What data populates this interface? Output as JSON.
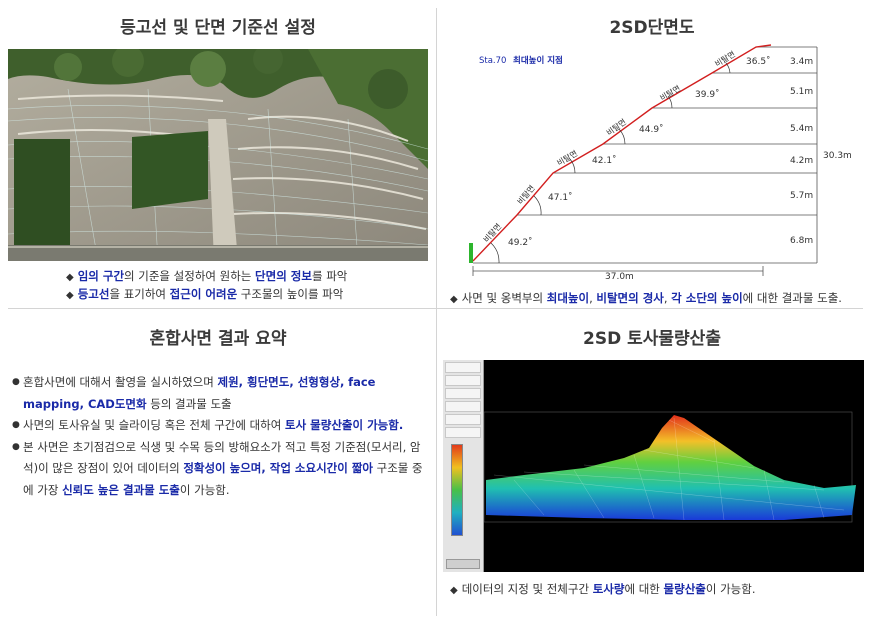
{
  "top_left": {
    "title": "등고선 및 단면 기준선 설정",
    "caption_line1": [
      {
        "text": "임의 구간",
        "hl": true
      },
      {
        "text": "의 기준을 설정하여 원하는 ",
        "hl": false
      },
      {
        "text": "단면의 정보",
        "hl": true
      },
      {
        "text": "를 파악",
        "hl": false
      }
    ],
    "caption_line2": [
      {
        "text": "등고선",
        "hl": true
      },
      {
        "text": "을 표기하여 ",
        "hl": false
      },
      {
        "text": "접근이 어려운",
        "hl": true
      },
      {
        "text": " 구조물의 높이를 파악",
        "hl": false
      }
    ]
  },
  "top_right": {
    "title": "2SD단면도",
    "station": "Sta.70",
    "station_note": "최대높이 지점",
    "slope_labels": [
      "비탈면",
      "비탈면",
      "비탈면",
      "비탈면",
      "비탈면",
      "비탈면",
      "비탈면"
    ],
    "angles": [
      "49.2˚",
      "47.1˚",
      "42.1˚",
      "44.9˚",
      "39.9˚",
      "36.5˚"
    ],
    "heights": [
      "3.4m",
      "5.1m",
      "5.4m",
      "4.2m",
      "5.7m",
      "6.8m"
    ],
    "total_height": "30.3m",
    "width": "37.0m",
    "caption": [
      {
        "text": "사면 및 옹벽부의 ",
        "hl": false
      },
      {
        "text": "최대높이",
        "hl": true
      },
      {
        "text": ", ",
        "hl": false
      },
      {
        "text": "비탈면의 경사",
        "hl": true
      },
      {
        "text": ", ",
        "hl": false
      },
      {
        "text": "각 소단의 높이",
        "hl": true
      },
      {
        "text": "에 대한 결과물 도출.",
        "hl": false
      }
    ]
  },
  "bottom_left": {
    "title": "혼합사면 결과 요약",
    "bullets": [
      [
        {
          "text": "혼합사면에 대해서 촬영을 실시하였으며 ",
          "hl": false
        },
        {
          "text": "제원, 횡단면도, 선형형상,",
          "hl": true
        },
        {
          "text": " ",
          "hl": false
        },
        {
          "text": "face mapping, CAD도면화",
          "hl": true
        },
        {
          "text": " 등의 결과물 도출",
          "hl": false
        }
      ],
      [
        {
          "text": "사면의 토사유실 및 슬라이딩 혹은 전체 구간에 대하여 ",
          "hl": false
        },
        {
          "text": "토사 물량산출이 가능함.",
          "hl": true
        }
      ],
      [
        {
          "text": "본 사면은  초기점검으로 식생 및 수목 등의 방해요소가 적고 특정 기준점(모서리, 암석)이 많은 장점이 있어 데이터의 ",
          "hl": false
        },
        {
          "text": "정확성이 높으며, 작업 소요시간이 짧아",
          "hl": true
        },
        {
          "text": " 구조물 중에 가장 ",
          "hl": false
        },
        {
          "text": "신뢰도 높은 결과물 도출",
          "hl": true
        },
        {
          "text": "이 가능함.",
          "hl": false
        }
      ]
    ]
  },
  "bottom_right": {
    "title": "2SD 토사물량산출",
    "caption": [
      {
        "text": "데이터의 지정 및 전체구간 ",
        "hl": false
      },
      {
        "text": "토사량",
        "hl": true
      },
      {
        "text": "에 대한 ",
        "hl": false
      },
      {
        "text": "물량산출",
        "hl": true
      },
      {
        "text": "이 가능함.",
        "hl": false
      }
    ]
  },
  "colors": {
    "highlight": "#1a2aa8",
    "section_line": "#d21f1f",
    "green_marker": "#2db52d"
  },
  "icons": {
    "caption_bullet": "diamond-icon",
    "summary_bullet": "circle-icon"
  }
}
